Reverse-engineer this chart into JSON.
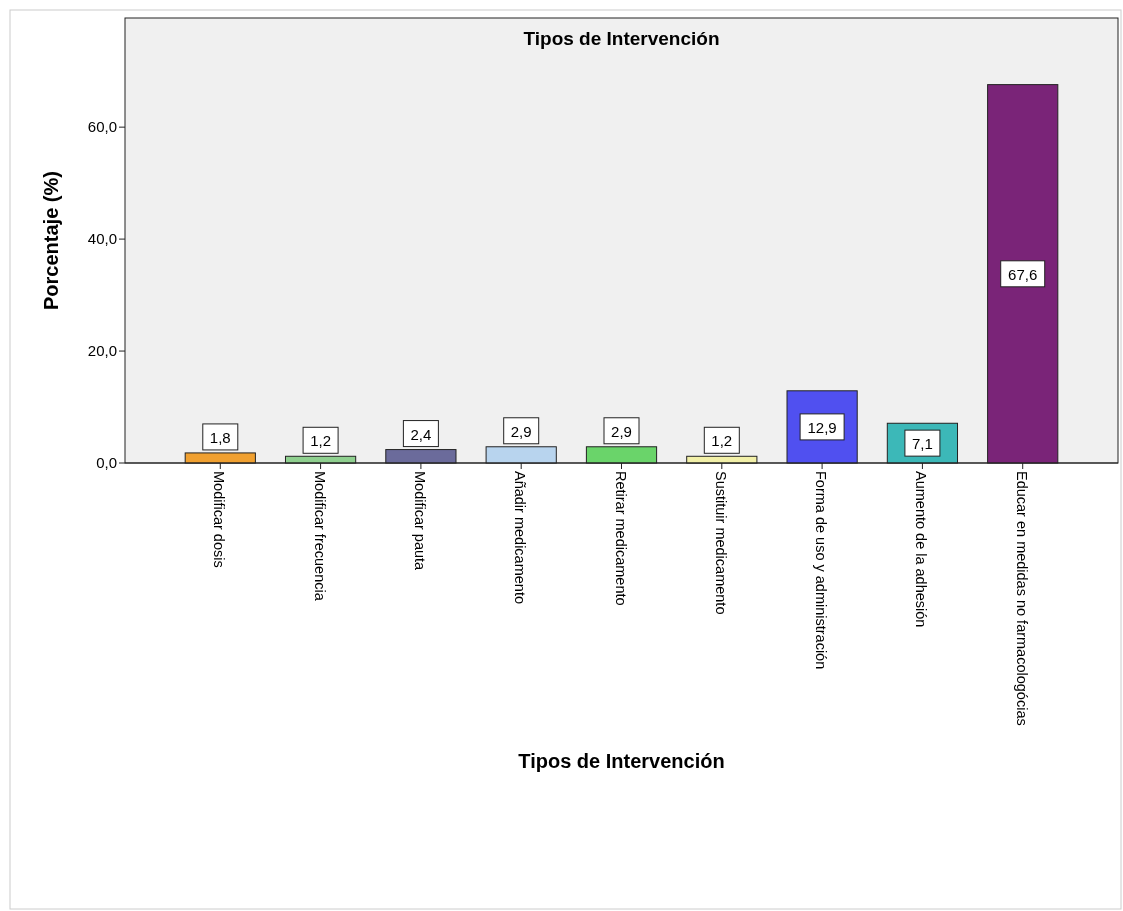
{
  "chart_data": {
    "type": "bar",
    "title": "Tipos de Intervención",
    "xlabel": "Tipos de Intervención",
    "ylabel": "Porcentaje (%)",
    "categories": [
      "Modificar dosis",
      "Modificar frecuencia",
      "Modificar pauta",
      "Añadir medicamento",
      "Retirar medicamento",
      "Sustituir medicamento",
      "Forma de uso y administración",
      "Aumento de la adhesión",
      "Educar en medidas no farmacologócias"
    ],
    "values": [
      1.8,
      1.2,
      2.4,
      2.9,
      2.9,
      1.2,
      12.9,
      7.1,
      67.6
    ],
    "value_labels": [
      "1,8",
      "1,2",
      "2,4",
      "2,9",
      "2,9",
      "1,2",
      "12,9",
      "7,1",
      "67,6"
    ],
    "colors": [
      "#f0a030",
      "#8fd08f",
      "#6b6b9b",
      "#b8d4ee",
      "#6ad46a",
      "#f2f0a8",
      "#5050f0",
      "#3cb8b8",
      "#7a2478"
    ],
    "ylim": [
      0,
      79.5
    ],
    "yticks": [
      {
        "value": 0,
        "label": "0,0"
      },
      {
        "value": 20,
        "label": "20,0"
      },
      {
        "value": 40,
        "label": "40,0"
      },
      {
        "value": 60,
        "label": "60,0"
      }
    ],
    "grid": false
  }
}
